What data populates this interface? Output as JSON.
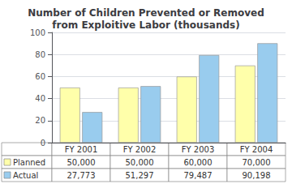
{
  "chart_data": {
    "type": "bar",
    "title": "Number of Children Prevented or Removed\nfrom Exploitive Labor (thousands)",
    "categories": [
      "FY 2001",
      "FY 2002",
      "FY 2003",
      "FY 2004"
    ],
    "series": [
      {
        "name": "Planned",
        "color": "#FFFFAA",
        "values": [
          50,
          50,
          60,
          70
        ],
        "value_labels": [
          "50,000",
          "50,000",
          "60,000",
          "70,000"
        ]
      },
      {
        "name": "Actual",
        "color": "#99CCEE",
        "values": [
          27.773,
          51.297,
          79.487,
          90.198
        ],
        "value_labels": [
          "27,773",
          "51,297",
          "79,487",
          "90,198"
        ]
      }
    ],
    "ylim": [
      0,
      100
    ],
    "yticks": [
      0,
      20,
      40,
      60,
      80,
      100
    ],
    "grid": true
  }
}
